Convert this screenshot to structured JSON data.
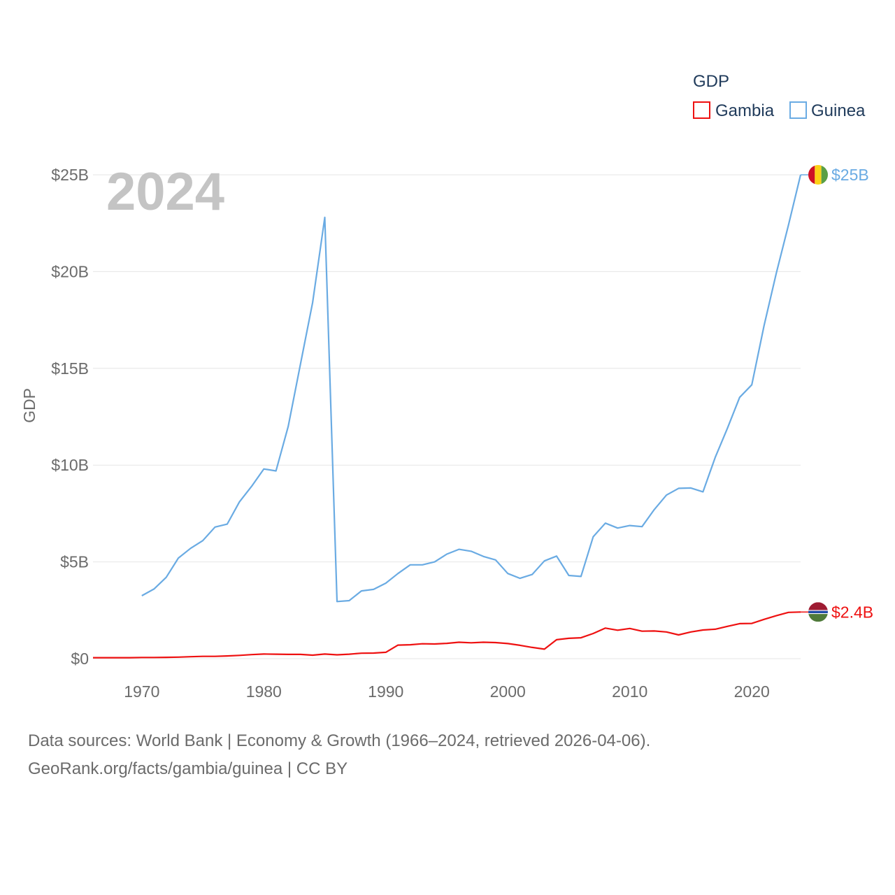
{
  "chart_data": {
    "type": "line",
    "title": "",
    "current_year": "2024",
    "xlabel": "",
    "ylabel": "GDP",
    "xlim": [
      1966,
      2024
    ],
    "ylim": [
      0,
      25
    ],
    "x_ticks": [
      1970,
      1980,
      1990,
      2000,
      2010,
      2020
    ],
    "y_ticks": [
      0,
      5,
      10,
      15,
      20,
      25
    ],
    "y_tick_labels": [
      "$0",
      "$5B",
      "$10B",
      "$15B",
      "$20B",
      "$25B"
    ],
    "grid": true,
    "legend": {
      "title": "GDP",
      "position": "top-right"
    },
    "series": [
      {
        "name": "Gambia",
        "color": "#ee1111",
        "end_label": "$2.4B",
        "flag": "gambia-flag",
        "points": [
          [
            1966,
            0.05
          ],
          [
            1967,
            0.05
          ],
          [
            1968,
            0.05
          ],
          [
            1969,
            0.05
          ],
          [
            1970,
            0.06
          ],
          [
            1971,
            0.06
          ],
          [
            1972,
            0.07
          ],
          [
            1973,
            0.08
          ],
          [
            1974,
            0.1
          ],
          [
            1975,
            0.12
          ],
          [
            1976,
            0.12
          ],
          [
            1977,
            0.14
          ],
          [
            1978,
            0.17
          ],
          [
            1979,
            0.21
          ],
          [
            1980,
            0.24
          ],
          [
            1981,
            0.23
          ],
          [
            1982,
            0.22
          ],
          [
            1983,
            0.22
          ],
          [
            1984,
            0.18
          ],
          [
            1985,
            0.24
          ],
          [
            1986,
            0.2
          ],
          [
            1987,
            0.23
          ],
          [
            1988,
            0.28
          ],
          [
            1989,
            0.29
          ],
          [
            1990,
            0.33
          ],
          [
            1991,
            0.7
          ],
          [
            1992,
            0.72
          ],
          [
            1993,
            0.77
          ],
          [
            1994,
            0.76
          ],
          [
            1995,
            0.79
          ],
          [
            1996,
            0.85
          ],
          [
            1997,
            0.82
          ],
          [
            1998,
            0.85
          ],
          [
            1999,
            0.83
          ],
          [
            2000,
            0.78
          ],
          [
            2001,
            0.69
          ],
          [
            2002,
            0.58
          ],
          [
            2003,
            0.49
          ],
          [
            2004,
            0.98
          ],
          [
            2005,
            1.05
          ],
          [
            2006,
            1.08
          ],
          [
            2007,
            1.3
          ],
          [
            2008,
            1.58
          ],
          [
            2009,
            1.47
          ],
          [
            2010,
            1.56
          ],
          [
            2011,
            1.42
          ],
          [
            2012,
            1.43
          ],
          [
            2013,
            1.38
          ],
          [
            2014,
            1.23
          ],
          [
            2015,
            1.38
          ],
          [
            2016,
            1.48
          ],
          [
            2017,
            1.52
          ],
          [
            2018,
            1.67
          ],
          [
            2019,
            1.81
          ],
          [
            2020,
            1.82
          ],
          [
            2021,
            2.03
          ],
          [
            2022,
            2.22
          ],
          [
            2023,
            2.39
          ],
          [
            2024,
            2.41
          ]
        ]
      },
      {
        "name": "Guinea",
        "color": "#6aabe3",
        "end_label": "$25B",
        "flag": "guinea-flag",
        "points": [
          [
            1970,
            3.25
          ],
          [
            1971,
            3.6
          ],
          [
            1972,
            4.2
          ],
          [
            1973,
            5.2
          ],
          [
            1974,
            5.7
          ],
          [
            1975,
            6.1
          ],
          [
            1976,
            6.8
          ],
          [
            1977,
            6.95
          ],
          [
            1978,
            8.1
          ],
          [
            1979,
            8.9
          ],
          [
            1980,
            9.8
          ],
          [
            1981,
            9.7
          ],
          [
            1982,
            12.0
          ],
          [
            1983,
            15.2
          ],
          [
            1984,
            18.4
          ],
          [
            1985,
            22.8
          ],
          [
            1986,
            2.95
          ],
          [
            1987,
            3.0
          ],
          [
            1988,
            3.5
          ],
          [
            1989,
            3.58
          ],
          [
            1990,
            3.9
          ],
          [
            1991,
            4.4
          ],
          [
            1992,
            4.85
          ],
          [
            1993,
            4.85
          ],
          [
            1994,
            5.0
          ],
          [
            1995,
            5.4
          ],
          [
            1996,
            5.65
          ],
          [
            1997,
            5.55
          ],
          [
            1998,
            5.28
          ],
          [
            1999,
            5.1
          ],
          [
            2000,
            4.4
          ],
          [
            2001,
            4.15
          ],
          [
            2002,
            4.35
          ],
          [
            2003,
            5.05
          ],
          [
            2004,
            5.3
          ],
          [
            2005,
            4.3
          ],
          [
            2006,
            4.25
          ],
          [
            2007,
            6.3
          ],
          [
            2008,
            7.0
          ],
          [
            2009,
            6.75
          ],
          [
            2010,
            6.88
          ],
          [
            2011,
            6.82
          ],
          [
            2012,
            7.7
          ],
          [
            2013,
            8.45
          ],
          [
            2014,
            8.8
          ],
          [
            2015,
            8.82
          ],
          [
            2016,
            8.62
          ],
          [
            2017,
            10.4
          ],
          [
            2018,
            11.9
          ],
          [
            2019,
            13.5
          ],
          [
            2020,
            14.15
          ],
          [
            2021,
            17.2
          ],
          [
            2022,
            19.9
          ],
          [
            2023,
            22.4
          ],
          [
            2024,
            25.0
          ]
        ]
      }
    ]
  },
  "footer": {
    "line1": "Data sources: World Bank | Economy & Growth (1966–2024, retrieved 2026-04-06).",
    "line2": "GeoRank.org/facts/gambia/guinea | CC BY"
  }
}
